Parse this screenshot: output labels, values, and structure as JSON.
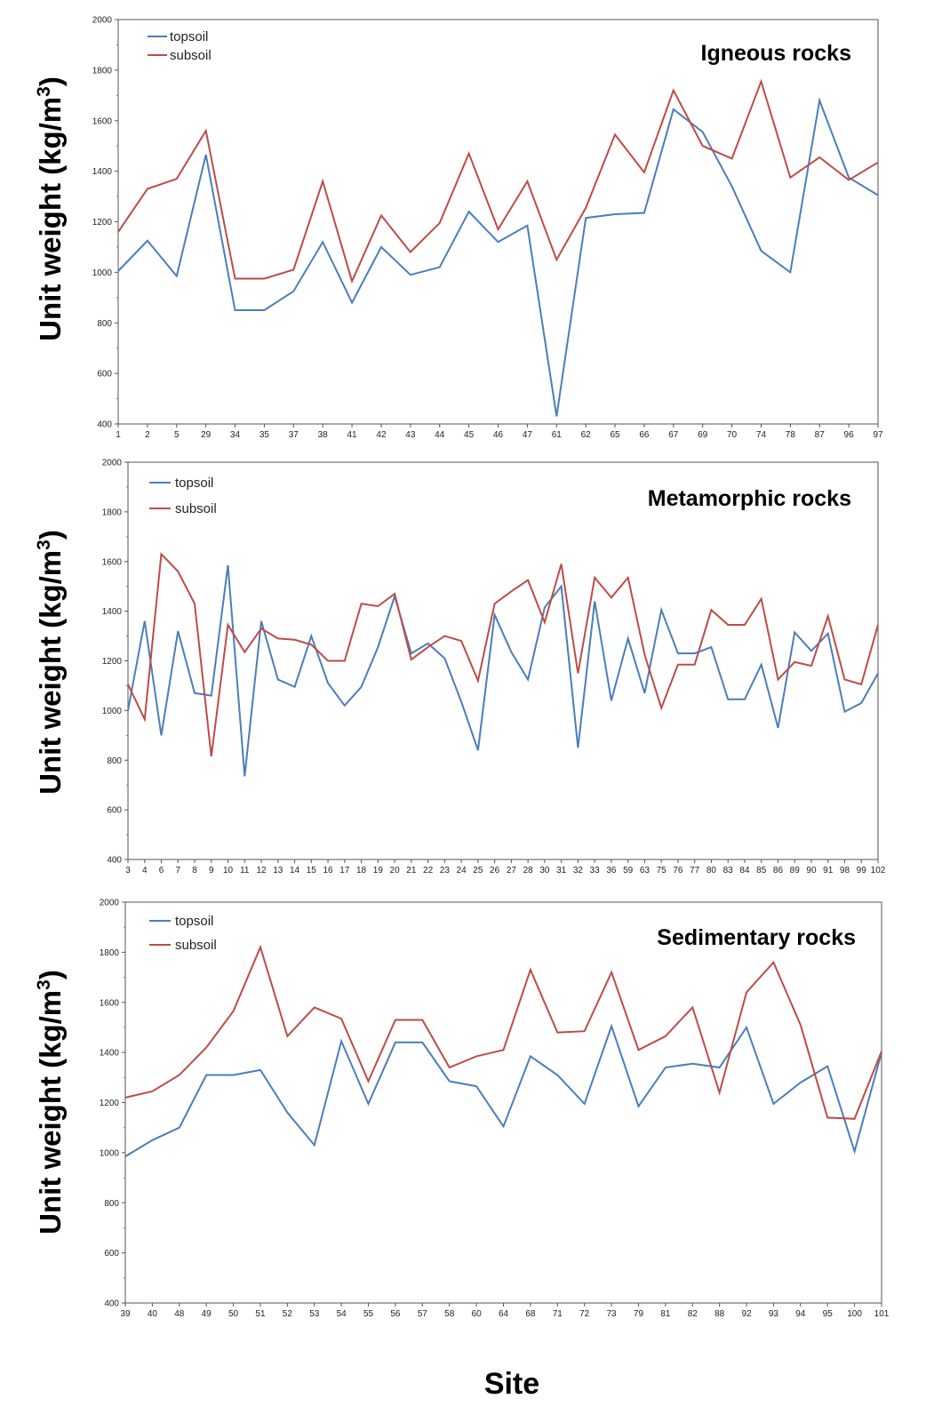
{
  "figure": {
    "xlabel": "Site"
  },
  "chart_data": [
    {
      "type": "line",
      "title": "Igneous rocks",
      "ylabel": "Unit weight (kg/m",
      "ylabel_sup": "3",
      "ylabel_close": ")",
      "ylim": [
        400,
        2000
      ],
      "yticks": [
        400,
        600,
        800,
        1000,
        1200,
        1400,
        1600,
        1800,
        2000
      ],
      "grid": false,
      "legend_position": "top-left",
      "categories": [
        "1",
        "2",
        "5",
        "29",
        "34",
        "35",
        "37",
        "38",
        "41",
        "42",
        "43",
        "44",
        "45",
        "46",
        "47",
        "61",
        "62",
        "65",
        "66",
        "67",
        "69",
        "70",
        "74",
        "78",
        "87",
        "96",
        "97"
      ],
      "series": [
        {
          "name": "topsoil",
          "color": "#4a7ebb",
          "values": [
            1005,
            1125,
            985,
            1465,
            850,
            850,
            925,
            1120,
            880,
            1100,
            990,
            1020,
            1240,
            1120,
            1185,
            430,
            1215,
            1230,
            1235,
            1645,
            1555,
            1340,
            1085,
            1000,
            1680,
            1375,
            1305
          ]
        },
        {
          "name": "subsoil",
          "color": "#be4b48",
          "values": [
            1160,
            1330,
            1370,
            1560,
            975,
            975,
            1010,
            1360,
            965,
            1225,
            1080,
            1195,
            1470,
            1170,
            1360,
            1050,
            1255,
            1545,
            1395,
            1720,
            1500,
            1450,
            1755,
            1375,
            1455,
            1365,
            1435
          ]
        }
      ]
    },
    {
      "type": "line",
      "title": "Metamorphic rocks",
      "ylabel": "Unit weight (kg/m",
      "ylabel_sup": "3",
      "ylabel_close": ")",
      "ylim": [
        400,
        2000
      ],
      "yticks": [
        400,
        600,
        800,
        1000,
        1200,
        1400,
        1600,
        1800,
        2000
      ],
      "grid": false,
      "legend_position": "top-left",
      "categories": [
        "3",
        "4",
        "6",
        "7",
        "8",
        "9",
        "10",
        "11",
        "12",
        "13",
        "14",
        "15",
        "16",
        "17",
        "18",
        "19",
        "20",
        "21",
        "22",
        "23",
        "24",
        "25",
        "26",
        "27",
        "28",
        "30",
        "31",
        "32",
        "33",
        "36",
        "59",
        "63",
        "75",
        "76",
        "77",
        "80",
        "83",
        "84",
        "85",
        "86",
        "89",
        "90",
        "91",
        "98",
        "99",
        "102"
      ],
      "series": [
        {
          "name": "topsoil",
          "color": "#4a7ebb",
          "values": [
            1000,
            1360,
            900,
            1320,
            1070,
            1060,
            1585,
            735,
            1360,
            1125,
            1095,
            1300,
            1110,
            1020,
            1095,
            1255,
            1460,
            1230,
            1270,
            1210,
            1035,
            840,
            1385,
            1235,
            1125,
            1415,
            1500,
            850,
            1440,
            1040,
            1290,
            1070,
            1405,
            1230,
            1230,
            1255,
            1045,
            1045,
            1185,
            930,
            1315,
            1240,
            1310,
            995,
            1030,
            1150
          ]
        },
        {
          "name": "subsoil",
          "color": "#be4b48",
          "values": [
            1105,
            965,
            1630,
            1560,
            1430,
            815,
            1345,
            1235,
            1330,
            1290,
            1285,
            1265,
            1200,
            1200,
            1430,
            1420,
            1470,
            1205,
            1255,
            1300,
            1280,
            1120,
            1430,
            1480,
            1525,
            1355,
            1590,
            1150,
            1535,
            1455,
            1535,
            1225,
            1010,
            1185,
            1185,
            1405,
            1345,
            1345,
            1450,
            1125,
            1195,
            1180,
            1380,
            1125,
            1105,
            1345
          ]
        }
      ]
    },
    {
      "type": "line",
      "title": "Sedimentary rocks",
      "ylabel": "Unit weight (kg/m",
      "ylabel_sup": "3",
      "ylabel_close": ")",
      "ylim": [
        400,
        2000
      ],
      "yticks": [
        400,
        600,
        800,
        1000,
        1200,
        1400,
        1600,
        1800,
        2000
      ],
      "grid": false,
      "legend_position": "top-left",
      "categories": [
        "39",
        "40",
        "48",
        "49",
        "50",
        "51",
        "52",
        "53",
        "54",
        "55",
        "56",
        "57",
        "58",
        "60",
        "64",
        "68",
        "71",
        "72",
        "73",
        "79",
        "81",
        "82",
        "88",
        "92",
        "93",
        "94",
        "95",
        "100",
        "101"
      ],
      "series": [
        {
          "name": "topsoil",
          "color": "#4a7ebb",
          "values": [
            985,
            1050,
            1100,
            1310,
            1310,
            1330,
            1160,
            1030,
            1445,
            1195,
            1440,
            1440,
            1285,
            1265,
            1105,
            1385,
            1310,
            1195,
            1505,
            1185,
            1340,
            1355,
            1340,
            1500,
            1195,
            1280,
            1345,
            1005,
            1400
          ]
        },
        {
          "name": "subsoil",
          "color": "#be4b48",
          "values": [
            1220,
            1245,
            1310,
            1420,
            1565,
            1820,
            1465,
            1580,
            1535,
            1285,
            1530,
            1530,
            1340,
            1385,
            1410,
            1730,
            1480,
            1485,
            1720,
            1410,
            1465,
            1580,
            1240,
            1640,
            1760,
            1510,
            1140,
            1135,
            1405
          ]
        }
      ]
    }
  ]
}
